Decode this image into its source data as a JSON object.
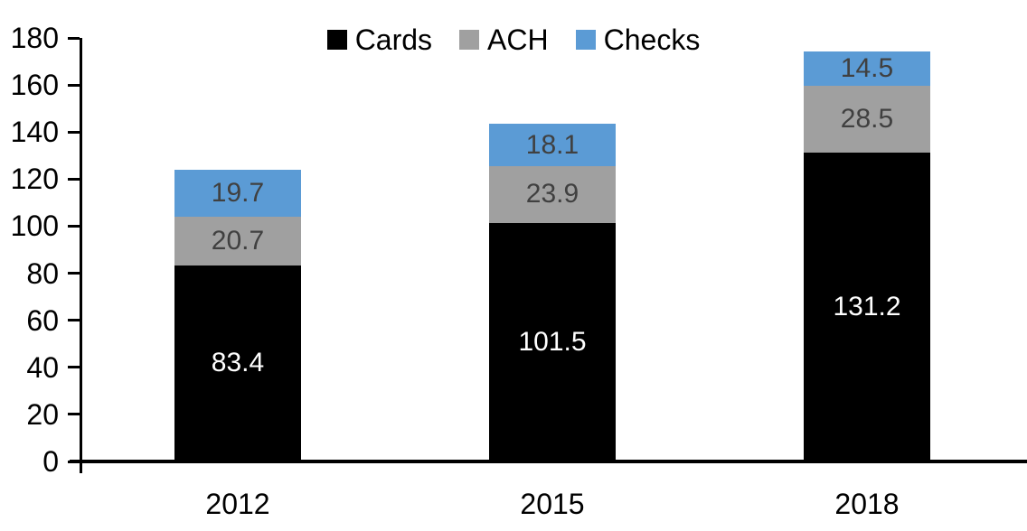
{
  "chart_data": {
    "type": "bar",
    "stacked": true,
    "title": "",
    "xlabel": "",
    "ylabel": "",
    "categories": [
      "2012",
      "2015",
      "2018"
    ],
    "series": [
      {
        "name": "Cards",
        "color": "#000000",
        "label_color": "#ffffff",
        "values": [
          83.4,
          101.5,
          131.2
        ]
      },
      {
        "name": "ACH",
        "color": "#a0a0a0",
        "label_color": "#404040",
        "values": [
          20.7,
          23.9,
          28.5
        ]
      },
      {
        "name": "Checks",
        "color": "#5b9bd5",
        "label_color": "#404040",
        "values": [
          19.7,
          18.1,
          14.5
        ]
      }
    ],
    "yticks": [
      0,
      20,
      40,
      60,
      80,
      100,
      120,
      140,
      160,
      180
    ],
    "ylim": [
      0,
      180
    ],
    "grid": false,
    "legend_position": "top-center",
    "axis_color": "#000000",
    "data_labels": "inside-center"
  }
}
